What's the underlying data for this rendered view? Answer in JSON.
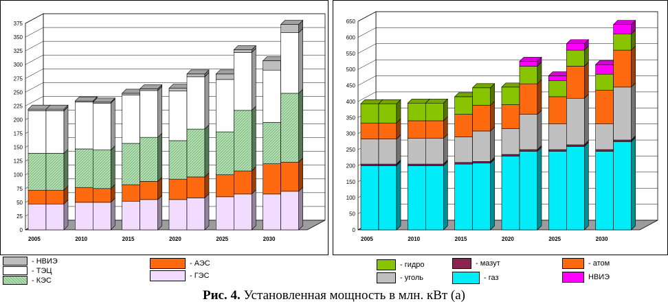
{
  "caption": {
    "bold": "Рис. 4.",
    "text": "Установленная мощность в млн. кВт (а)"
  },
  "colors": {
    "nvie": "#bdbdbd",
    "tec": "#ffffff",
    "kes": "#8fc88f",
    "aes": "#ff6a10",
    "ges": "#f1dcff",
    "gidro": "#88c400",
    "ugol": "#c0c0c0",
    "mazut": "#8a2252",
    "gaz": "#00ecf8",
    "atom": "#ff6a10",
    "nvie2": "#ff00ff",
    "floor": "#9c9c9c"
  },
  "chart_data": [
    {
      "type": "bar",
      "stacked": true,
      "three_d": true,
      "years": [
        "2005",
        "2010",
        "2015",
        "2020",
        "2025",
        "2030"
      ],
      "bars_per_year": 2,
      "ylim": [
        0,
        375
      ],
      "ytick_step": 25,
      "series_order": [
        "ГЭС",
        "АЭС",
        "КЭС",
        "ТЭЦ",
        "НВИЭ"
      ],
      "series": [
        {
          "name": "ГЭС",
          "key": "ges",
          "values": [
            47,
            47,
            50,
            50,
            52,
            55,
            55,
            58,
            60,
            65,
            65,
            70
          ]
        },
        {
          "name": "АЭС",
          "key": "aes",
          "values": [
            25,
            25,
            27,
            25,
            30,
            33,
            37,
            38,
            40,
            42,
            55,
            53
          ]
        },
        {
          "name": "КЭС",
          "key": "kes",
          "values": [
            67,
            67,
            70,
            70,
            75,
            80,
            70,
            87,
            78,
            110,
            75,
            125
          ]
        },
        {
          "name": "ТЭЦ",
          "key": "tec",
          "values": [
            77,
            77,
            85,
            85,
            88,
            85,
            90,
            95,
            95,
            105,
            95,
            110
          ]
        },
        {
          "name": "НВИЭ",
          "key": "nvie",
          "values": [
            3,
            3,
            2,
            2,
            3,
            3,
            5,
            5,
            10,
            5,
            17,
            15
          ]
        }
      ],
      "legend": [
        {
          "key": "nvie",
          "label": "- НВИЭ"
        },
        {
          "key": "tec",
          "label": "- ТЭЦ"
        },
        {
          "key": "kes",
          "label": "- КЭС"
        },
        {
          "key": "aes",
          "label": "- АЭС"
        },
        {
          "key": "ges",
          "label": "- ГЭС"
        }
      ]
    },
    {
      "type": "bar",
      "stacked": true,
      "three_d": true,
      "years": [
        "2005",
        "2010",
        "2015",
        "2020",
        "2025",
        "2030"
      ],
      "bars_per_year": 2,
      "ylim": [
        0,
        650
      ],
      "ytick_step": 50,
      "series_order": [
        "газ",
        "мазут",
        "уголь",
        "атом",
        "гидро",
        "НВИЭ"
      ],
      "series": [
        {
          "name": "газ",
          "key": "gaz",
          "values": [
            200,
            200,
            200,
            200,
            205,
            208,
            230,
            245,
            245,
            260,
            245,
            275
          ]
        },
        {
          "name": "мазут",
          "key": "mazut",
          "values": [
            5,
            5,
            5,
            5,
            5,
            5,
            5,
            5,
            5,
            5,
            5,
            5
          ]
        },
        {
          "name": "уголь",
          "key": "ugol",
          "values": [
            78,
            78,
            80,
            80,
            80,
            95,
            80,
            110,
            80,
            145,
            80,
            165
          ]
        },
        {
          "name": "атом",
          "key": "atom",
          "values": [
            50,
            50,
            55,
            55,
            70,
            80,
            75,
            95,
            85,
            100,
            105,
            115
          ]
        },
        {
          "name": "гидро",
          "key": "gidro",
          "values": [
            60,
            60,
            55,
            55,
            55,
            55,
            55,
            55,
            50,
            50,
            50,
            50
          ]
        },
        {
          "name": "НВИЭ",
          "key": "nvie2",
          "values": [
            0,
            0,
            0,
            0,
            0,
            0,
            0,
            15,
            15,
            20,
            30,
            30
          ]
        }
      ],
      "legend": [
        {
          "key": "gidro",
          "label": "- гидро"
        },
        {
          "key": "ugol",
          "label": "- уголь"
        },
        {
          "key": "mazut",
          "label": "- мазут"
        },
        {
          "key": "gaz",
          "label": "- газ"
        },
        {
          "key": "atom",
          "label": "- атом"
        },
        {
          "key": "nvie2",
          "label": "НВИЭ"
        }
      ]
    }
  ]
}
